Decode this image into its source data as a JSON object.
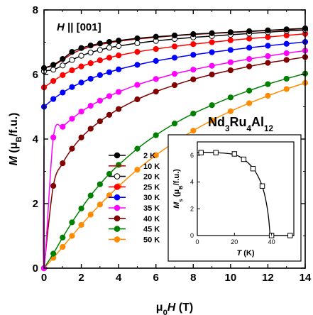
{
  "chart_data": [
    {
      "type": "line",
      "xlabel_prefix": "μ",
      "xlabel_sub": "0",
      "xlabel_var": "H",
      "xlabel_unit": " (T)",
      "ylabel_var": "M",
      "ylabel_unit_open": " (μ",
      "ylabel_unit_sub": "B",
      "ylabel_unit_close": "/f.u.)",
      "xlim": [
        0,
        14
      ],
      "ylim": [
        0,
        8
      ],
      "xticks": [
        0,
        2,
        4,
        6,
        8,
        10,
        12,
        14
      ],
      "yticks": [
        0,
        2,
        4,
        6,
        8
      ],
      "legend_position": "center-left",
      "annotations": {
        "field_var": "H",
        "field_dir": " || [001]",
        "compound": [
          {
            "text": "Nd",
            "sub": false
          },
          {
            "text": "3",
            "sub": true
          },
          {
            "text": "Ru",
            "sub": false
          },
          {
            "text": "4",
            "sub": true
          },
          {
            "text": "Al",
            "sub": false
          },
          {
            "text": "12",
            "sub": true
          }
        ]
      },
      "series": [
        {
          "name": "2 K",
          "color": "#000000",
          "marker": "filled",
          "ms": 6.2,
          "x": [
            0,
            0.5,
            1,
            1.5,
            2,
            2.5,
            3,
            3.5,
            4,
            5,
            6,
            7,
            8,
            9,
            10,
            11,
            12,
            13,
            14
          ],
          "y": [
            6.2,
            6.3,
            6.48,
            6.7,
            6.82,
            6.9,
            6.96,
            7.01,
            7.05,
            7.12,
            7.17,
            7.21,
            7.25,
            7.28,
            7.31,
            7.34,
            7.37,
            7.4,
            7.43
          ]
        },
        {
          "name": "10 K",
          "color": "#cc0000",
          "marker": "line",
          "ms": 6.2,
          "x": [
            0,
            0.5,
            1,
            1.5,
            2,
            2.5,
            3,
            3.5,
            4,
            5,
            6,
            7,
            8,
            9,
            10,
            11,
            12,
            13,
            14
          ],
          "y": [
            6.2,
            6.28,
            6.45,
            6.64,
            6.77,
            6.86,
            6.93,
            6.98,
            7.03,
            7.1,
            7.15,
            7.2,
            7.24,
            7.27,
            7.3,
            7.33,
            7.36,
            7.39,
            7.42
          ]
        },
        {
          "name": "20 K",
          "color": "#000000",
          "marker": "open",
          "ms": 6.0,
          "x": [
            0,
            0.5,
            1,
            1.5,
            2,
            2.5,
            3,
            3.5,
            4,
            5,
            6,
            7,
            8,
            9,
            10,
            11,
            12,
            13,
            14
          ],
          "y": [
            6.1,
            6.15,
            6.28,
            6.45,
            6.58,
            6.68,
            6.76,
            6.83,
            6.88,
            6.97,
            7.04,
            7.1,
            7.15,
            7.19,
            7.23,
            7.27,
            7.31,
            7.35,
            7.38
          ]
        },
        {
          "name": "25 K",
          "color": "#ff0000",
          "marker": "filled",
          "ms": 5.6,
          "x": [
            0,
            0.5,
            1,
            1.5,
            2,
            2.5,
            3,
            3.5,
            4,
            5,
            6,
            7,
            8,
            9,
            10,
            11,
            12,
            13,
            14
          ],
          "y": [
            5.6,
            5.8,
            5.98,
            6.13,
            6.25,
            6.35,
            6.44,
            6.52,
            6.59,
            6.7,
            6.79,
            6.87,
            6.94,
            7.0,
            7.06,
            7.11,
            7.16,
            7.21,
            7.26
          ]
        },
        {
          "name": "30 K",
          "color": "#0000ff",
          "marker": "filled",
          "ms": 5.0,
          "x": [
            0,
            0.5,
            1,
            1.5,
            2,
            2.5,
            3,
            3.5,
            4,
            5,
            6,
            7,
            8,
            9,
            10,
            11,
            12,
            13,
            14
          ],
          "y": [
            5.0,
            5.24,
            5.44,
            5.61,
            5.75,
            5.87,
            5.98,
            6.07,
            6.16,
            6.3,
            6.42,
            6.52,
            6.61,
            6.69,
            6.76,
            6.83,
            6.89,
            6.95,
            7.01
          ]
        },
        {
          "name": "35 K",
          "color": "#ff00ff",
          "marker": "filled",
          "ms": 3.8,
          "x": [
            0,
            0.5,
            1,
            1.5,
            2,
            2.5,
            3,
            3.5,
            4,
            5,
            6,
            7,
            8,
            9,
            10,
            11,
            12,
            13,
            14
          ],
          "y": [
            0,
            4.05,
            4.38,
            4.63,
            4.85,
            5.03,
            5.19,
            5.33,
            5.46,
            5.68,
            5.86,
            6.02,
            6.15,
            6.27,
            6.38,
            6.48,
            6.57,
            6.66,
            6.74
          ]
        },
        {
          "name": "40 K",
          "color": "#800000",
          "marker": "filled",
          "ms": 0,
          "x": [
            0,
            0.5,
            1,
            1.5,
            2,
            2.5,
            3,
            3.5,
            4,
            5,
            6,
            7,
            8,
            9,
            10,
            11,
            12,
            13,
            14
          ],
          "y": [
            0,
            2.55,
            3.25,
            3.7,
            4.05,
            4.32,
            4.55,
            4.75,
            4.93,
            5.23,
            5.47,
            5.67,
            5.85,
            6.0,
            6.13,
            6.25,
            6.36,
            6.45,
            6.54
          ]
        },
        {
          "name": "45 K",
          "color": "#008000",
          "marker": "filled",
          "ms": 0,
          "x": [
            0,
            0.5,
            1,
            1.5,
            2,
            2.5,
            3,
            3.5,
            4,
            5,
            6,
            7,
            8,
            9,
            10,
            11,
            12,
            13,
            14
          ],
          "y": [
            0,
            0.45,
            0.95,
            1.42,
            1.85,
            2.25,
            2.6,
            2.92,
            3.2,
            3.7,
            4.12,
            4.48,
            4.79,
            5.05,
            5.29,
            5.5,
            5.7,
            5.87,
            6.03
          ]
        },
        {
          "name": "50 K",
          "color": "#ff8c00",
          "marker": "filled",
          "ms": 0,
          "x": [
            0,
            0.5,
            1,
            1.5,
            2,
            2.5,
            3,
            3.5,
            4,
            5,
            6,
            7,
            8,
            9,
            10,
            11,
            12,
            13,
            14
          ],
          "y": [
            0,
            0.32,
            0.66,
            1.0,
            1.34,
            1.66,
            1.97,
            2.26,
            2.54,
            3.05,
            3.5,
            3.9,
            4.26,
            4.58,
            4.86,
            5.11,
            5.34,
            5.55,
            5.74
          ]
        }
      ]
    },
    {
      "type": "scatter",
      "inset": true,
      "xlabel_var": "T",
      "xlabel_unit": " (K)",
      "ylabel_var": "M",
      "ylabel_sub": "s",
      "ylabel_unit_open": " (μ",
      "ylabel_unit_sub": "B",
      "ylabel_unit_close": "/f.u.)",
      "xlim": [
        0,
        52
      ],
      "ylim": [
        0,
        7
      ],
      "xticks": [
        0,
        20,
        40
      ],
      "yticks": [
        0,
        2,
        4,
        6
      ],
      "points": {
        "x": [
          2,
          10,
          20,
          25,
          30,
          35,
          40,
          50
        ],
        "y": [
          6.2,
          6.2,
          6.1,
          5.7,
          5.0,
          3.7,
          0,
          0
        ]
      },
      "curve": {
        "x": [
          0,
          5,
          10,
          15,
          20,
          24,
          28,
          31,
          34,
          36,
          37.5,
          38.5,
          39.2,
          52
        ],
        "y": [
          6.22,
          6.22,
          6.2,
          6.15,
          6.05,
          5.8,
          5.35,
          4.85,
          4.05,
          3.2,
          2.2,
          1.2,
          0,
          0
        ]
      }
    }
  ]
}
